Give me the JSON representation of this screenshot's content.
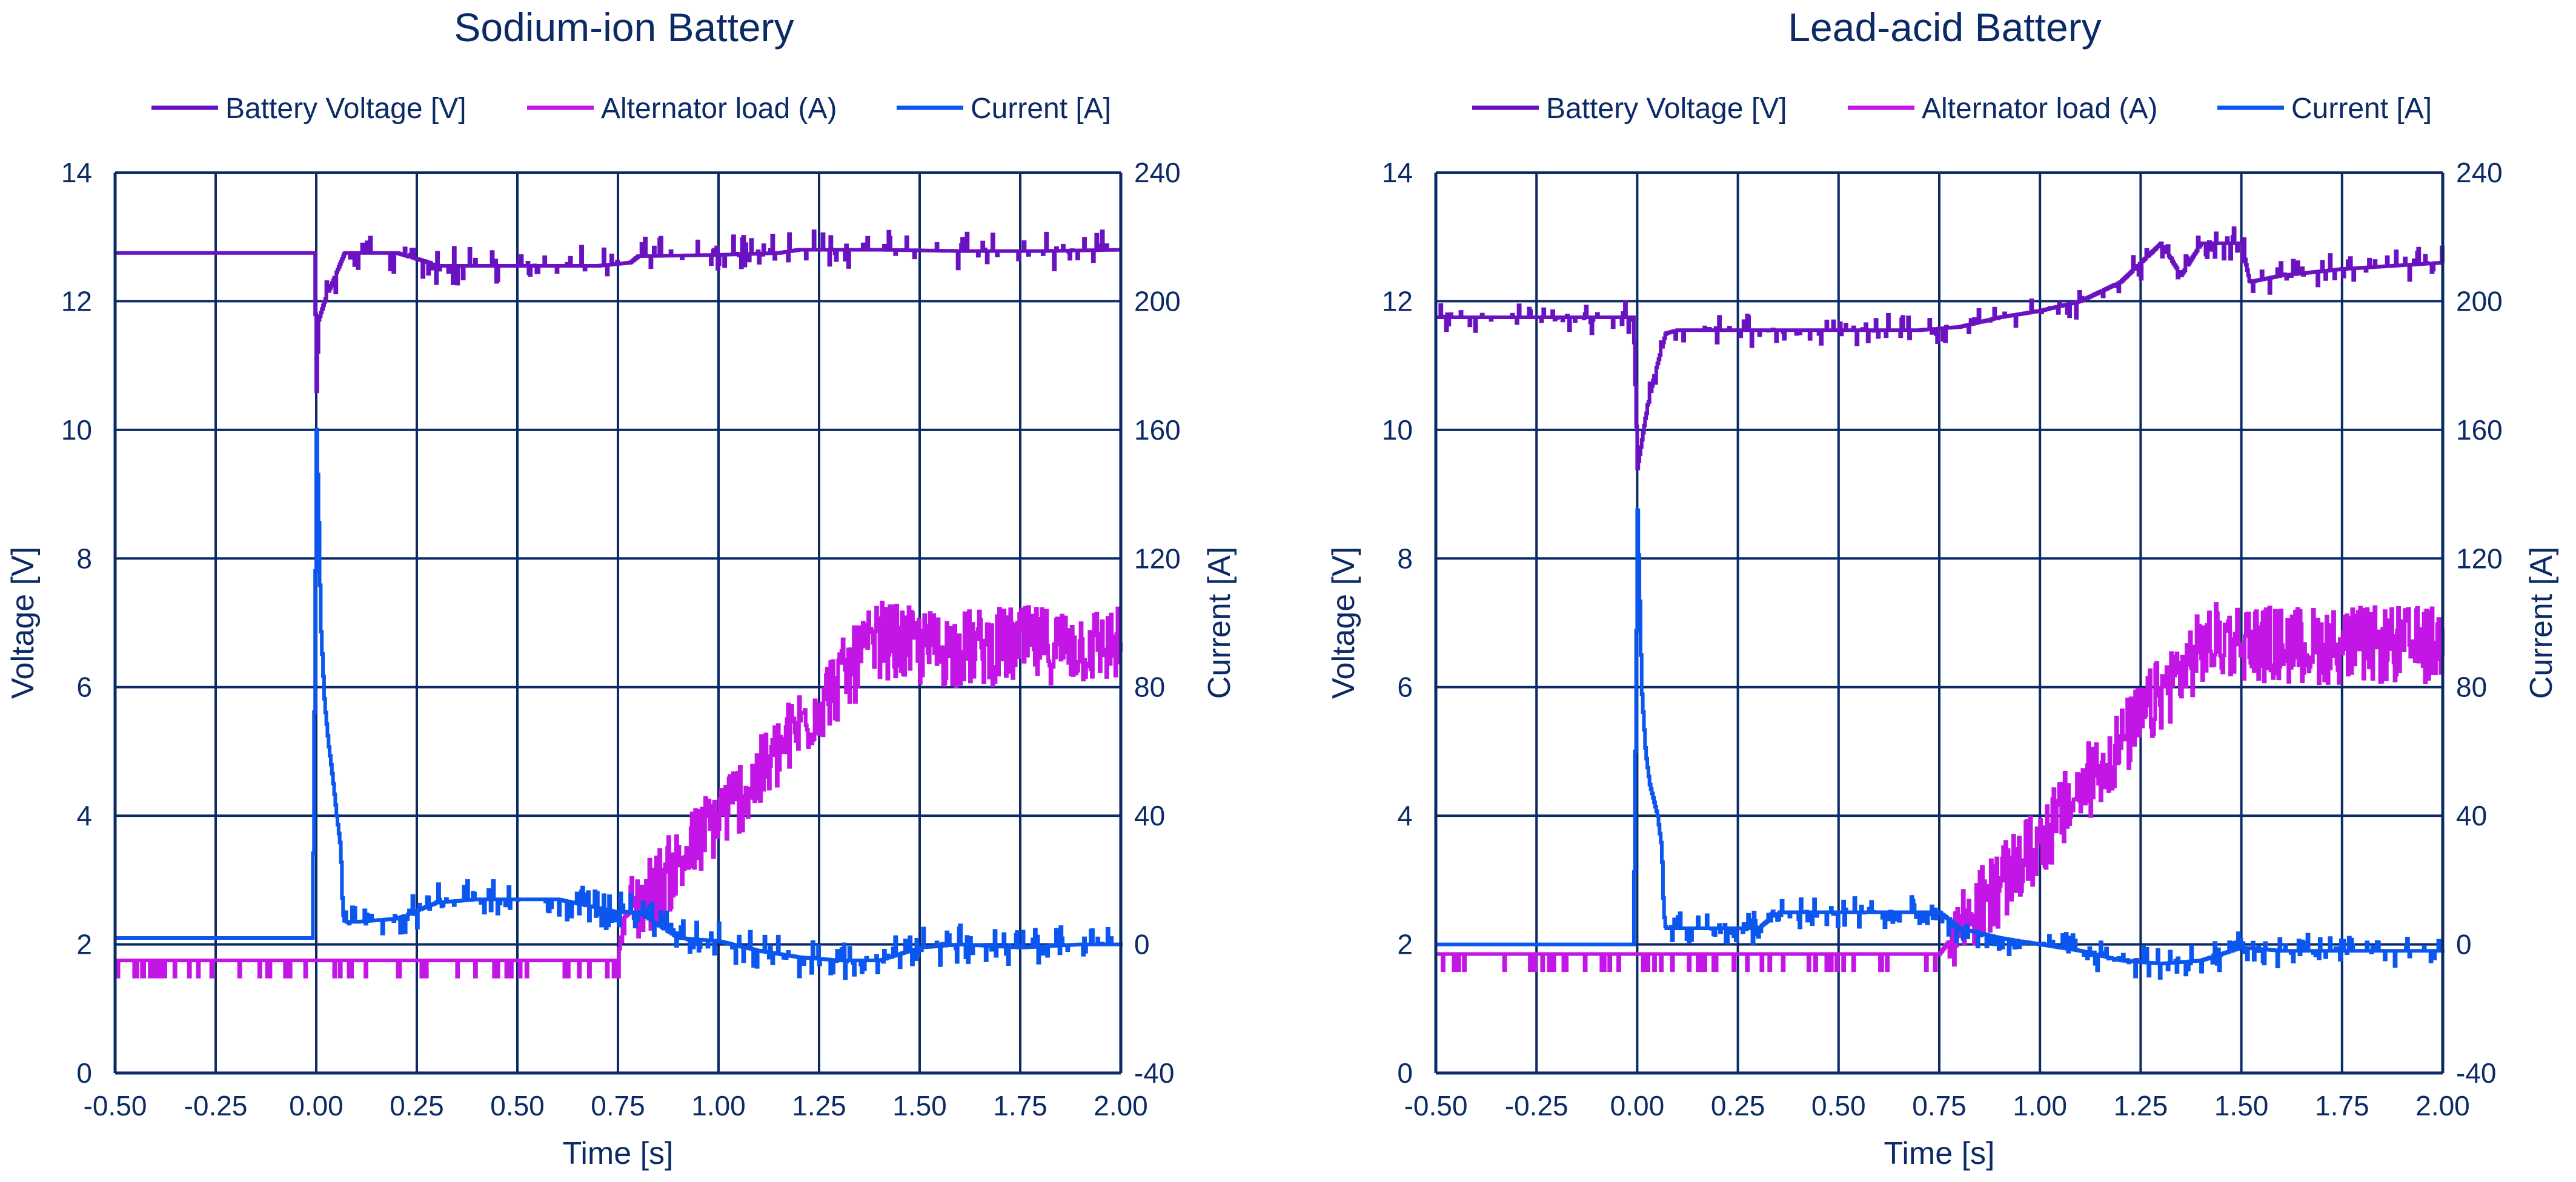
{
  "colors": {
    "axis": "#0b2a66",
    "grid": "#0b2a66",
    "voltage": "#6a12c2",
    "alternator": "#c316e6",
    "current": "#0a56ee"
  },
  "legend": {
    "voltage": "Battery Voltage [V]",
    "alternator": "Alternator load (A)",
    "current": "Current [A]"
  },
  "chart_data": [
    {
      "type": "line",
      "title": "Sodium-ion Battery",
      "xlabel": "Time [s]",
      "ylabel": "Voltage [V]",
      "y2label": "Current [A]",
      "xlim": [
        -0.5,
        2.0
      ],
      "ylim": [
        0,
        14
      ],
      "y2lim": [
        -40,
        240
      ],
      "xticks": [
        "-0.50",
        "-0.25",
        "0.00",
        "0.25",
        "0.50",
        "0.75",
        "1.00",
        "1.25",
        "1.50",
        "1.75",
        "2.00"
      ],
      "yticks": [
        "0",
        "2",
        "4",
        "6",
        "8",
        "10",
        "12",
        "14"
      ],
      "y2ticks": [
        "-40",
        "0",
        "40",
        "80",
        "120",
        "160",
        "200",
        "240"
      ],
      "grid": true,
      "legend_position": "top",
      "series": [
        {
          "name": "Battery Voltage [V]",
          "axis": "left",
          "x": [
            -0.5,
            -0.005,
            0.0,
            0.005,
            0.02,
            0.04,
            0.06,
            0.07,
            0.1,
            0.2,
            0.28,
            0.3,
            0.5,
            0.7,
            0.78,
            0.8,
            1.0,
            1.15,
            1.2,
            1.4,
            1.6,
            1.8,
            2.0
          ],
          "y": [
            12.75,
            12.75,
            10.6,
            11.7,
            12.0,
            12.3,
            12.6,
            12.75,
            12.75,
            12.75,
            12.6,
            12.55,
            12.55,
            12.55,
            12.6,
            12.7,
            12.72,
            12.75,
            12.8,
            12.8,
            12.78,
            12.78,
            12.8
          ],
          "noise": 0.3
        },
        {
          "name": "Alternator load (A)",
          "axis": "right",
          "x": [
            -0.5,
            0.75,
            0.76,
            0.8,
            0.9,
            1.0,
            1.1,
            1.2,
            1.3,
            1.4,
            1.5,
            1.6,
            1.75,
            1.9,
            2.0
          ],
          "y": [
            -5,
            -5,
            8,
            12,
            25,
            40,
            52,
            68,
            82,
            95,
            92,
            92,
            93,
            93,
            93
          ],
          "noise": 12
        },
        {
          "name": "Current [A]",
          "axis": "right",
          "x": [
            -0.5,
            -0.01,
            0.0,
            0.005,
            0.01,
            0.02,
            0.03,
            0.04,
            0.05,
            0.06,
            0.065,
            0.07,
            0.1,
            0.2,
            0.3,
            0.4,
            0.5,
            0.6,
            0.75,
            0.8,
            0.9,
            1.0,
            1.1,
            1.2,
            1.3,
            1.4,
            1.5,
            1.6,
            1.75,
            1.9,
            2.0
          ],
          "y": [
            2,
            2,
            160,
            135,
            100,
            75,
            62,
            52,
            40,
            30,
            10,
            7,
            7,
            8,
            13,
            14,
            14,
            14,
            10,
            10,
            2,
            1,
            -2,
            -4,
            -5,
            -5,
            -1,
            0,
            -1,
            0,
            0
          ],
          "noise": 6
        }
      ]
    },
    {
      "type": "line",
      "title": "Lead-acid Battery",
      "xlabel": "Time [s]",
      "ylabel": "Voltage [V]",
      "y2label": "Current [A]",
      "xlim": [
        -0.5,
        2.0
      ],
      "ylim": [
        0,
        14
      ],
      "y2lim": [
        -40,
        240
      ],
      "xticks": [
        "-0.50",
        "-0.25",
        "0.00",
        "0.25",
        "0.50",
        "0.75",
        "1.00",
        "1.25",
        "1.50",
        "1.75",
        "2.00"
      ],
      "yticks": [
        "0",
        "2",
        "4",
        "6",
        "8",
        "10",
        "12",
        "14"
      ],
      "y2ticks": [
        "-40",
        "0",
        "40",
        "80",
        "120",
        "160",
        "200",
        "240"
      ],
      "grid": true,
      "legend_position": "top",
      "series": [
        {
          "name": "Battery Voltage [V]",
          "axis": "left",
          "x": [
            -0.5,
            -0.01,
            0.0,
            0.02,
            0.04,
            0.07,
            0.1,
            0.3,
            0.5,
            0.7,
            0.8,
            0.9,
            1.0,
            1.1,
            1.2,
            1.25,
            1.3,
            1.35,
            1.4,
            1.5,
            1.52,
            1.6,
            1.75,
            2.0
          ],
          "y": [
            11.75,
            11.75,
            9.4,
            10.2,
            10.8,
            11.5,
            11.55,
            11.55,
            11.55,
            11.55,
            11.6,
            11.75,
            11.85,
            12.0,
            12.3,
            12.6,
            12.9,
            12.4,
            12.9,
            12.9,
            12.3,
            12.4,
            12.5,
            12.6
          ],
          "noise": 0.25
        },
        {
          "name": "Alternator load (A)",
          "axis": "right",
          "x": [
            -0.5,
            0.75,
            0.78,
            0.8,
            0.9,
            1.0,
            1.1,
            1.2,
            1.3,
            1.4,
            1.45,
            1.6,
            1.8,
            2.0
          ],
          "y": [
            -3,
            -3,
            2,
            6,
            18,
            32,
            48,
            62,
            78,
            92,
            95,
            93,
            93,
            93
          ],
          "noise": 12
        },
        {
          "name": "Current [A]",
          "axis": "right",
          "x": [
            -0.5,
            -0.01,
            0.0,
            0.005,
            0.01,
            0.02,
            0.03,
            0.04,
            0.05,
            0.06,
            0.065,
            0.07,
            0.1,
            0.3,
            0.35,
            0.5,
            0.75,
            0.8,
            0.9,
            1.0,
            1.1,
            1.2,
            1.3,
            1.4,
            1.5,
            1.6,
            1.75,
            1.9,
            2.0
          ],
          "y": [
            0,
            0,
            135,
            110,
            80,
            60,
            50,
            45,
            40,
            30,
            10,
            5,
            5,
            5,
            10,
            10,
            10,
            5,
            2,
            0,
            -2,
            -5,
            -6,
            -5,
            -1,
            -2,
            -2,
            -2,
            -2
          ],
          "noise": 5
        }
      ]
    }
  ]
}
